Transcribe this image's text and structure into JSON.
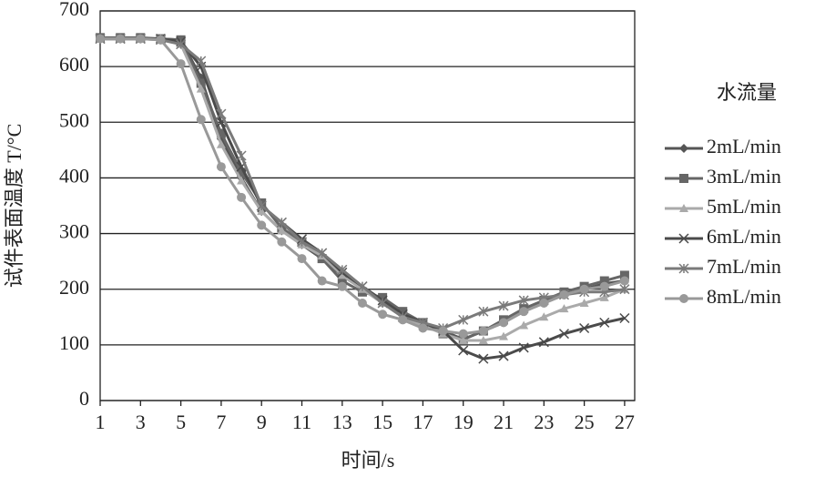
{
  "chart_data": {
    "type": "line",
    "x_label": "时间/s",
    "y_label": "试件表面温度 T/°C",
    "legend_title": "水流量",
    "x": [
      1,
      2,
      3,
      4,
      5,
      6,
      7,
      8,
      9,
      10,
      11,
      12,
      13,
      14,
      15,
      16,
      17,
      18,
      19,
      20,
      21,
      22,
      23,
      24,
      25,
      26,
      27
    ],
    "xlim": [
      1,
      27.5
    ],
    "xticks": [
      1,
      3,
      5,
      7,
      9,
      11,
      13,
      15,
      17,
      19,
      21,
      23,
      25,
      27
    ],
    "ylim": [
      0,
      700
    ],
    "yticks": [
      0,
      100,
      200,
      300,
      400,
      500,
      600,
      700
    ],
    "grid": true,
    "legend": "right",
    "series": [
      {
        "name": "2mL/min",
        "color": "#555555",
        "marker": "diamond",
        "values": [
          650,
          650,
          650,
          650,
          648,
          580,
          470,
          400,
          340,
          305,
          280,
          255,
          225,
          200,
          180,
          155,
          140,
          125,
          110,
          125,
          140,
          160,
          175,
          190,
          200,
          210,
          215
        ]
      },
      {
        "name": "3mL/min",
        "color": "#666666",
        "marker": "square",
        "values": [
          652,
          652,
          652,
          650,
          648,
          570,
          480,
          410,
          355,
          310,
          285,
          255,
          215,
          195,
          185,
          160,
          140,
          120,
          110,
          125,
          145,
          165,
          180,
          195,
          205,
          215,
          225
        ]
      },
      {
        "name": "5mL/min",
        "color": "#aaaaaa",
        "marker": "triangle",
        "values": [
          650,
          650,
          650,
          650,
          640,
          560,
          460,
          395,
          340,
          305,
          280,
          260,
          225,
          200,
          175,
          150,
          135,
          120,
          108,
          108,
          115,
          135,
          150,
          165,
          175,
          185,
          200
        ]
      },
      {
        "name": "6mL/min",
        "color": "#4a4a4a",
        "marker": "x",
        "values": [
          650,
          650,
          650,
          650,
          645,
          600,
          500,
          420,
          350,
          320,
          290,
          265,
          230,
          205,
          180,
          155,
          140,
          125,
          90,
          75,
          80,
          95,
          105,
          120,
          130,
          140,
          148
        ]
      },
      {
        "name": "7mL/min",
        "color": "#7a7a7a",
        "marker": "star",
        "values": [
          650,
          650,
          650,
          648,
          640,
          610,
          515,
          440,
          350,
          320,
          285,
          265,
          235,
          205,
          175,
          150,
          140,
          130,
          145,
          160,
          170,
          180,
          185,
          190,
          195,
          195,
          200
        ]
      },
      {
        "name": "8mL/min",
        "color": "#999999",
        "marker": "circle",
        "values": [
          650,
          650,
          650,
          648,
          605,
          505,
          420,
          365,
          315,
          285,
          255,
          215,
          205,
          175,
          155,
          145,
          130,
          125,
          120,
          125,
          140,
          160,
          175,
          190,
          200,
          205,
          215
        ]
      }
    ]
  }
}
